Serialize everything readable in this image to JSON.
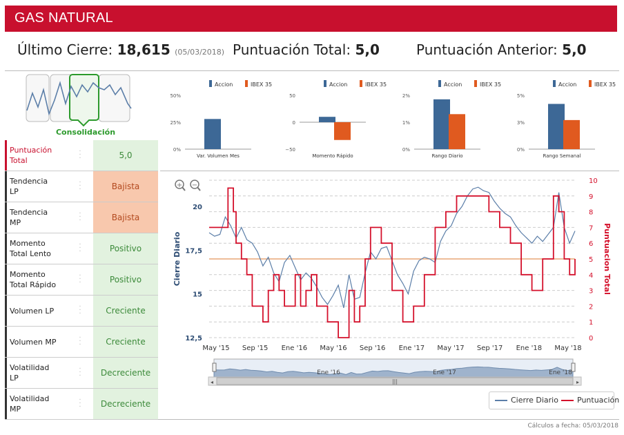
{
  "title": "GAS NATURAL",
  "summary": {
    "last_close_label": "Último Cierre:",
    "last_close_value": "18,615",
    "last_close_date": "(05/03/2018)",
    "total_score_label": "Puntuación Total:",
    "total_score_value": "5,0",
    "prev_score_label": "Puntuación Anterior:",
    "prev_score_value": "5,0"
  },
  "phase": {
    "label": "Consolidación"
  },
  "indicators": [
    {
      "label": "Puntuación Total",
      "value": "5,0",
      "status": "green",
      "highlight": true
    },
    {
      "label": "Tendencia LP",
      "value": "Bajista",
      "status": "orange"
    },
    {
      "label": "Tendencia MP",
      "value": "Bajista",
      "status": "orange"
    },
    {
      "label": "Momento Total Lento",
      "value": "Positivo",
      "status": "green"
    },
    {
      "label": "Momento Total Rápido",
      "value": "Positivo",
      "status": "green"
    },
    {
      "label": "Volumen LP",
      "value": "Creciente",
      "status": "green"
    },
    {
      "label": "Volumen MP",
      "value": "Creciente",
      "status": "green"
    },
    {
      "label": "Volatilidad LP",
      "value": "Decreciente",
      "status": "green"
    },
    {
      "label": "Volatilidad MP",
      "value": "Decreciente",
      "status": "green"
    }
  ],
  "colors": {
    "accion": "#3d6896",
    "ibex": "#e05a1f",
    "score": "#d4102b",
    "price": "#5b7ea8",
    "ref": "#e8a677"
  },
  "footer": "Cálculos a fecha: 05/03/2018",
  "chart_data": [
    {
      "type": "bar",
      "title": "Var. Volumen Mes",
      "legend": [
        "Accion",
        "IBEX 35"
      ],
      "yticks": [
        "50%",
        "25%",
        "0%"
      ],
      "ylim": [
        0,
        50
      ],
      "series": [
        {
          "name": "Accion",
          "values": [
            28
          ]
        },
        {
          "name": "IBEX 35",
          "values": [
            0
          ]
        }
      ]
    },
    {
      "type": "bar",
      "title": "Momento Rápido",
      "legend": [
        "Accion",
        "IBEX 35"
      ],
      "yticks": [
        "50",
        "0",
        "−50"
      ],
      "ylim": [
        -50,
        50
      ],
      "series": [
        {
          "name": "Accion",
          "values": [
            10
          ]
        },
        {
          "name": "IBEX 35",
          "values": [
            -33
          ]
        }
      ]
    },
    {
      "type": "bar",
      "title": "Rango Diario",
      "legend": [
        "Accion",
        "IBEX 35"
      ],
      "yticks": [
        "2%",
        "1%",
        "0%"
      ],
      "ylim": [
        0,
        2
      ],
      "series": [
        {
          "name": "Accion",
          "values": [
            1.85
          ]
        },
        {
          "name": "IBEX 35",
          "values": [
            1.3
          ]
        }
      ]
    },
    {
      "type": "bar",
      "title": "Rango Semanal",
      "legend": [
        "Accion",
        "IBEX 35"
      ],
      "yticks": [
        "5%",
        "3%",
        "0%"
      ],
      "ylim": [
        0,
        5
      ],
      "series": [
        {
          "name": "Accion",
          "values": [
            4.2
          ]
        },
        {
          "name": "IBEX 35",
          "values": [
            2.7
          ]
        }
      ]
    },
    {
      "type": "line",
      "ylabel_left": "Cierre Diario",
      "ylabel_right": "Puntuacion Total",
      "left_ticks": [
        "20",
        "17,5",
        "15",
        "12,5"
      ],
      "left_ylim": [
        12.5,
        21.5
      ],
      "right_ticks": [
        "10",
        "9",
        "8",
        "7",
        "6",
        "5",
        "4",
        "3",
        "2",
        "1",
        "0"
      ],
      "right_ylim": [
        0,
        10
      ],
      "x_ticks": [
        "May '15",
        "Sep '15",
        "Ene '16",
        "May '16",
        "Sep '16",
        "Ene '17",
        "May '17",
        "Sep '17",
        "Ene '18",
        "May '18"
      ],
      "navigator_ticks": [
        "Ene '16",
        "Ene '17",
        "Ene '18"
      ],
      "reference_line": 17.0,
      "series": [
        {
          "name": "Cierre Diario",
          "x": [
            0,
            2,
            4,
            6,
            8,
            10,
            12,
            14,
            16,
            18,
            20,
            22,
            24,
            26,
            28,
            30,
            32,
            34,
            36,
            38,
            40,
            42,
            44,
            46,
            48,
            50,
            52,
            54,
            56,
            58,
            60,
            62,
            64,
            66,
            68,
            70,
            72,
            74,
            76,
            78,
            80,
            82,
            84,
            86,
            88,
            90,
            92,
            94,
            96,
            98,
            100,
            102,
            104,
            106,
            108,
            110,
            112,
            114,
            116,
            118,
            120,
            122,
            124,
            126,
            128,
            130,
            132,
            134,
            136
          ],
          "values": [
            18.5,
            18.3,
            18.4,
            19.4,
            18.9,
            18.2,
            18.8,
            18.1,
            17.9,
            17.4,
            16.6,
            17.1,
            16.2,
            15.7,
            16.8,
            17.2,
            16.5,
            15.8,
            16.2,
            15.9,
            15.4,
            14.8,
            14.4,
            14.9,
            15.5,
            14.2,
            16.1,
            14.7,
            14.8,
            16.2,
            17.4,
            17.0,
            17.6,
            17.7,
            16.9,
            16.1,
            15.6,
            15.0,
            16.3,
            16.9,
            17.1,
            17.0,
            16.8,
            18.0,
            18.6,
            18.9,
            19.6,
            20.0,
            20.6,
            21.0,
            21.1,
            20.9,
            20.8,
            20.3,
            19.9,
            19.6,
            19.4,
            18.9,
            18.5,
            18.2,
            17.9,
            18.3,
            18.0,
            18.4,
            18.8,
            20.8,
            18.8,
            17.9,
            18.6
          ]
        },
        {
          "name": "Puntuación",
          "x": [
            0,
            4,
            7,
            9,
            10,
            12,
            14,
            16,
            18,
            20,
            22,
            24,
            26,
            28,
            30,
            32,
            34,
            36,
            38,
            40,
            44,
            48,
            52,
            54,
            56,
            58,
            60,
            64,
            68,
            72,
            76,
            80,
            84,
            88,
            92,
            96,
            100,
            104,
            108,
            112,
            116,
            120,
            124,
            128,
            130,
            132,
            134,
            136
          ],
          "values": [
            7,
            7,
            9.5,
            8,
            6,
            5,
            4,
            2,
            2,
            1,
            3,
            4,
            3,
            2,
            2,
            4,
            2,
            3,
            4,
            2,
            1,
            0,
            3,
            1,
            2,
            5,
            7,
            6,
            3,
            1,
            2,
            4,
            7,
            8,
            9,
            9,
            9,
            8,
            7,
            6,
            4,
            3,
            5,
            9,
            8,
            5,
            4,
            5
          ]
        }
      ]
    }
  ],
  "legend_labels": {
    "price": "Cierre Diario",
    "score": "Puntuación"
  }
}
